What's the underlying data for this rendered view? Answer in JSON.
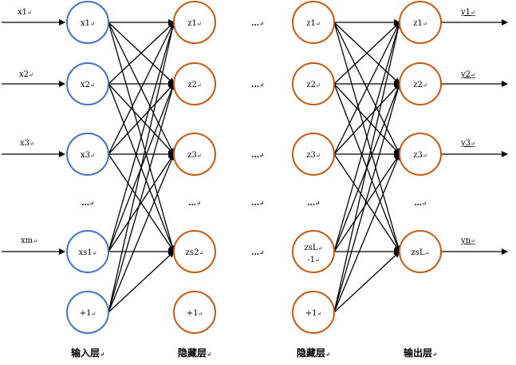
{
  "colors": {
    "input_circle": "#4472c4",
    "hidden_circle": "#c55a11",
    "line": "#000000"
  },
  "layer_titles": {
    "input": "输入层",
    "hidden1": "隐藏层",
    "hidden2": "隐藏层",
    "output": "输出层"
  },
  "return_mark": "↵",
  "inputs": {
    "arrow_labels": [
      "x1",
      "x2",
      "x3",
      "xm"
    ]
  },
  "input_layer": {
    "nodes": [
      "x1",
      "x2",
      "x3",
      "xs1",
      "+1"
    ],
    "ellipsis": "…"
  },
  "hidden1": {
    "nodes": [
      "z1",
      "z2",
      "z3",
      "zs2",
      "+1"
    ],
    "ellipsis": "…"
  },
  "middle_ellipsis": [
    "…",
    "…",
    "…",
    "…",
    "…"
  ],
  "hidden2": {
    "nodes": [
      "z1",
      "z2",
      "z3",
      "zsL",
      "+1"
    ],
    "node4_line2": "-1",
    "ellipsis": "…"
  },
  "output_layer": {
    "nodes": [
      "z1",
      "z2",
      "z3",
      "zsL"
    ],
    "ellipsis": "…"
  },
  "outputs": {
    "arrow_labels": [
      "y1",
      "y2",
      "y3",
      "yn"
    ]
  }
}
